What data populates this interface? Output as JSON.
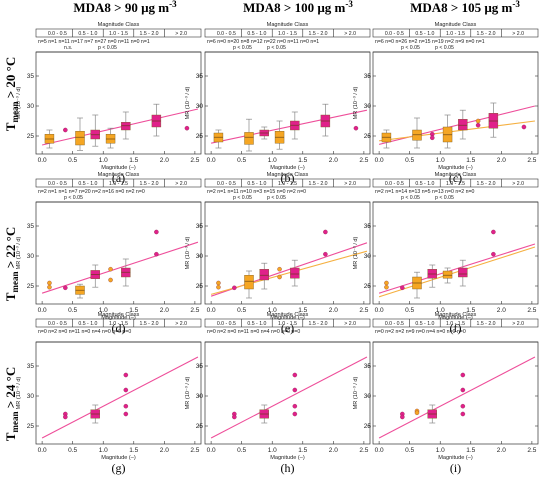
{
  "colors": {
    "magenta": "#E0218A",
    "orange": "#F5A623",
    "line_magenta": "#EE4E9A",
    "line_orange": "#F5B041",
    "whisker": "#888888"
  },
  "figure": {
    "column_titles": [
      {
        "prefix": "MDA8 > 90 µg m",
        "sup": "-3"
      },
      {
        "prefix": "MDA8 > 100 µg m",
        "sup": "-3"
      },
      {
        "prefix": "MDA8 > 105 µg m",
        "sup": "-3"
      }
    ],
    "row_labels": [
      {
        "t": "T",
        "sub": "mean",
        "rest": " > 20 °C"
      },
      {
        "t": "T",
        "sub": "mean",
        "rest": " > 22 °C"
      },
      {
        "t": "T",
        "sub": "mean",
        "rest": " > 24 °C"
      }
    ],
    "top_axis_title": "Magnitude Class",
    "class_labels": [
      "0.0 - 0.5",
      "0.5 - 1.0",
      "1.0 - 1.5",
      "1.5 - 2.0",
      "> 2.0"
    ],
    "x_label": "Magnitude (–)",
    "y_label": "MR (10⁻³ / d)",
    "x_ticks": [
      "0.0",
      "0.5",
      "1.0",
      "1.5",
      "2.0",
      "2.5"
    ],
    "y_ticks": [
      "25",
      "30",
      "35"
    ]
  },
  "chart_data": [
    {
      "type": "box",
      "panel": "a",
      "xlim": [
        -0.1,
        2.6
      ],
      "ylim": [
        22,
        39
      ],
      "n_text": "n=5  n=1 n=11 n=17 n=7 n=27 n=0  n=11 n=0  n=1",
      "sig_text": [
        "n.s.",
        "p < 0.05"
      ],
      "boxes": [
        {
          "x": 0.12,
          "q1": 23.8,
          "med": 24.5,
          "q3": 25.3,
          "lo": 23.0,
          "hi": 26.0,
          "color": "orange"
        },
        {
          "x": 0.62,
          "q1": 23.5,
          "med": 24.8,
          "q3": 25.8,
          "lo": 22.6,
          "hi": 28.0,
          "color": "orange"
        },
        {
          "x": 0.87,
          "q1": 24.5,
          "med": 25.2,
          "q3": 26.0,
          "lo": 23.3,
          "hi": 28.5,
          "color": "magenta"
        },
        {
          "x": 1.12,
          "q1": 23.8,
          "med": 24.5,
          "q3": 25.3,
          "lo": 23.0,
          "hi": 26.3,
          "color": "orange"
        },
        {
          "x": 1.37,
          "q1": 26.0,
          "med": 26.7,
          "q3": 27.3,
          "lo": 24.5,
          "hi": 29.0,
          "color": "magenta"
        },
        {
          "x": 1.87,
          "q1": 26.5,
          "med": 27.5,
          "q3": 28.5,
          "lo": 25.0,
          "hi": 30.3,
          "color": "magenta"
        }
      ],
      "points": [
        {
          "x": 0.38,
          "y": 26.0,
          "color": "magenta"
        },
        {
          "x": 2.37,
          "y": 26.3,
          "color": "magenta"
        }
      ],
      "lines": [
        {
          "color": "magenta",
          "x": [
            0.0,
            2.55
          ],
          "y": [
            23.5,
            29.5
          ]
        }
      ]
    },
    {
      "type": "box",
      "panel": "b",
      "xlim": [
        -0.1,
        2.6
      ],
      "ylim": [
        22,
        39
      ],
      "n_text": "n=6  n=0 n=20 n=8 n=12 n=22 n=0  n=11 n=0  n=1",
      "sig_text": [
        "p < 0.05",
        "p < 0.05"
      ],
      "boxes": [
        {
          "x": 0.12,
          "q1": 24.0,
          "med": 24.8,
          "q3": 25.5,
          "lo": 23.0,
          "hi": 26.0,
          "color": "orange"
        },
        {
          "x": 0.62,
          "q1": 23.6,
          "med": 24.8,
          "q3": 25.6,
          "lo": 22.5,
          "hi": 27.8,
          "color": "orange"
        },
        {
          "x": 0.87,
          "q1": 25.0,
          "med": 25.5,
          "q3": 26.0,
          "lo": 24.5,
          "hi": 26.5,
          "color": "magenta"
        },
        {
          "x": 1.12,
          "q1": 23.8,
          "med": 24.8,
          "q3": 25.8,
          "lo": 22.8,
          "hi": 27.5,
          "color": "orange"
        },
        {
          "x": 1.37,
          "q1": 26.0,
          "med": 26.8,
          "q3": 27.5,
          "lo": 24.5,
          "hi": 29.0,
          "color": "magenta"
        },
        {
          "x": 1.87,
          "q1": 26.5,
          "med": 27.5,
          "q3": 28.5,
          "lo": 25.0,
          "hi": 30.3,
          "color": "magenta"
        }
      ],
      "points": [
        {
          "x": 2.37,
          "y": 26.3,
          "color": "magenta"
        }
      ],
      "lines": [
        {
          "color": "magenta",
          "x": [
            0.0,
            2.55
          ],
          "y": [
            23.8,
            29.3
          ]
        }
      ]
    },
    {
      "type": "box",
      "panel": "c",
      "xlim": [
        -0.1,
        2.6
      ],
      "ylim": [
        22,
        39
      ],
      "n_text": "n=6  n=0 n=26 n=2 n=15 n=19 n=2  n=9 n=0  n=1",
      "sig_text": [
        "p < 0.05",
        "p < 0.05"
      ],
      "boxes": [
        {
          "x": 0.12,
          "q1": 24.0,
          "med": 24.8,
          "q3": 25.5,
          "lo": 23.0,
          "hi": 26.0,
          "color": "orange"
        },
        {
          "x": 0.62,
          "q1": 24.3,
          "med": 25.2,
          "q3": 26.0,
          "lo": 23.0,
          "hi": 28.0,
          "color": "orange"
        },
        {
          "x": 1.12,
          "q1": 24.0,
          "med": 25.2,
          "q3": 26.5,
          "lo": 23.0,
          "hi": 28.5,
          "color": "orange"
        },
        {
          "x": 1.37,
          "q1": 26.0,
          "med": 26.8,
          "q3": 27.8,
          "lo": 24.5,
          "hi": 29.3,
          "color": "magenta"
        },
        {
          "x": 1.87,
          "q1": 26.3,
          "med": 27.5,
          "q3": 28.8,
          "lo": 24.8,
          "hi": 30.5,
          "color": "magenta"
        }
      ],
      "points": [
        {
          "x": 0.87,
          "y": 25.3,
          "color": "magenta"
        },
        {
          "x": 0.87,
          "y": 24.7,
          "color": "magenta"
        },
        {
          "x": 1.62,
          "y": 26.8,
          "color": "magenta"
        },
        {
          "x": 1.62,
          "y": 27.5,
          "color": "orange"
        },
        {
          "x": 2.37,
          "y": 26.5,
          "color": "magenta"
        }
      ],
      "lines": [
        {
          "color": "magenta",
          "x": [
            0.0,
            2.55
          ],
          "y": [
            23.6,
            30.0
          ]
        },
        {
          "color": "orange",
          "x": [
            0.0,
            2.55
          ],
          "y": [
            24.2,
            27.5
          ]
        }
      ]
    },
    {
      "type": "box",
      "panel": "d",
      "xlim": [
        -0.1,
        2.6
      ],
      "ylim": [
        22,
        39
      ],
      "n_text": "n=2  n=1 n=1 n=7 n=20 n=2 n=16 n=0  n=2  n=0",
      "sig_text": [
        "p < 0.05"
      ],
      "boxes": [
        {
          "x": 0.62,
          "q1": 23.6,
          "med": 24.3,
          "q3": 25.0,
          "lo": 23.0,
          "hi": 25.3,
          "color": "orange"
        },
        {
          "x": 0.87,
          "q1": 26.2,
          "med": 26.9,
          "q3": 27.6,
          "lo": 24.8,
          "hi": 28.5,
          "color": "magenta"
        },
        {
          "x": 1.37,
          "q1": 26.5,
          "med": 27.3,
          "q3": 28.0,
          "lo": 25.0,
          "hi": 29.5,
          "color": "magenta"
        }
      ],
      "points": [
        {
          "x": 0.12,
          "y": 25.5,
          "color": "orange"
        },
        {
          "x": 0.12,
          "y": 24.8,
          "color": "orange"
        },
        {
          "x": 0.38,
          "y": 24.7,
          "color": "magenta"
        },
        {
          "x": 1.12,
          "y": 27.8,
          "color": "orange"
        },
        {
          "x": 1.12,
          "y": 26.0,
          "color": "orange"
        },
        {
          "x": 1.87,
          "y": 34.0,
          "color": "magenta"
        },
        {
          "x": 1.87,
          "y": 30.3,
          "color": "magenta"
        }
      ],
      "lines": [
        {
          "color": "magenta",
          "x": [
            0.0,
            2.55
          ],
          "y": [
            23.8,
            32.3
          ]
        }
      ]
    },
    {
      "type": "box",
      "panel": "e",
      "xlim": [
        -0.1,
        2.6
      ],
      "ylim": [
        22,
        39
      ],
      "n_text": "n=2  n=1 n=11 n=10 n=3 n=15 n=0  n=2  n=0",
      "sig_text": [
        "p < 0.05",
        "p < 0.05"
      ],
      "boxes": [
        {
          "x": 0.62,
          "q1": 24.5,
          "med": 25.8,
          "q3": 26.8,
          "lo": 23.0,
          "hi": 27.5,
          "color": "orange"
        },
        {
          "x": 0.87,
          "q1": 26.0,
          "med": 26.8,
          "q3": 27.8,
          "lo": 24.5,
          "hi": 28.8,
          "color": "magenta"
        },
        {
          "x": 1.37,
          "q1": 26.3,
          "med": 27.0,
          "q3": 28.0,
          "lo": 25.0,
          "hi": 29.3,
          "color": "magenta"
        }
      ],
      "points": [
        {
          "x": 0.12,
          "y": 25.5,
          "color": "orange"
        },
        {
          "x": 0.12,
          "y": 24.8,
          "color": "orange"
        },
        {
          "x": 0.38,
          "y": 24.7,
          "color": "magenta"
        },
        {
          "x": 1.12,
          "y": 27.8,
          "color": "orange"
        },
        {
          "x": 1.12,
          "y": 26.5,
          "color": "orange"
        },
        {
          "x": 1.87,
          "y": 34.0,
          "color": "magenta"
        },
        {
          "x": 1.87,
          "y": 30.3,
          "color": "magenta"
        }
      ],
      "lines": [
        {
          "color": "magenta",
          "x": [
            0.0,
            2.55
          ],
          "y": [
            23.3,
            32.2
          ]
        },
        {
          "color": "orange",
          "x": [
            0.0,
            2.55
          ],
          "y": [
            23.6,
            30.8
          ]
        }
      ]
    },
    {
      "type": "box",
      "panel": "f",
      "xlim": [
        -0.1,
        2.6
      ],
      "ylim": [
        22,
        39
      ],
      "n_text": "n=2  n=1 n=14 n=13 n=5 n=13 n=0  n=2  n=0",
      "sig_text": [
        "p < 0.05",
        "p < 0.05"
      ],
      "boxes": [
        {
          "x": 0.62,
          "q1": 24.5,
          "med": 25.5,
          "q3": 26.5,
          "lo": 23.0,
          "hi": 27.3,
          "color": "orange"
        },
        {
          "x": 0.87,
          "q1": 26.3,
          "med": 27.0,
          "q3": 27.8,
          "lo": 24.8,
          "hi": 28.5,
          "color": "magenta"
        },
        {
          "x": 1.12,
          "q1": 26.3,
          "med": 26.8,
          "q3": 27.5,
          "lo": 25.5,
          "hi": 28.0,
          "color": "orange"
        },
        {
          "x": 1.37,
          "q1": 26.5,
          "med": 27.0,
          "q3": 28.0,
          "lo": 25.0,
          "hi": 29.3,
          "color": "magenta"
        }
      ],
      "points": [
        {
          "x": 0.12,
          "y": 25.5,
          "color": "orange"
        },
        {
          "x": 0.12,
          "y": 24.8,
          "color": "orange"
        },
        {
          "x": 0.38,
          "y": 24.7,
          "color": "magenta"
        },
        {
          "x": 1.87,
          "y": 34.0,
          "color": "magenta"
        },
        {
          "x": 1.87,
          "y": 30.3,
          "color": "magenta"
        }
      ],
      "lines": [
        {
          "color": "magenta",
          "x": [
            0.0,
            2.55
          ],
          "y": [
            23.8,
            32.0
          ]
        },
        {
          "color": "orange",
          "x": [
            0.0,
            2.55
          ],
          "y": [
            23.2,
            31.5
          ]
        }
      ]
    },
    {
      "type": "box",
      "panel": "g",
      "xlim": [
        -0.1,
        2.6
      ],
      "ylim": [
        22,
        39
      ],
      "n_text": "n=0  n=2 n=0 n=11 n=0  n=4 n=0  n=0  n=0",
      "sig_text": [],
      "boxes": [
        {
          "x": 0.87,
          "q1": 26.3,
          "med": 27.0,
          "q3": 27.7,
          "lo": 25.5,
          "hi": 28.5,
          "color": "magenta"
        }
      ],
      "points": [
        {
          "x": 0.38,
          "y": 27.0,
          "color": "magenta"
        },
        {
          "x": 0.38,
          "y": 26.5,
          "color": "magenta"
        },
        {
          "x": 1.37,
          "y": 33.5,
          "color": "magenta"
        },
        {
          "x": 1.37,
          "y": 31.0,
          "color": "magenta"
        },
        {
          "x": 1.37,
          "y": 28.3,
          "color": "magenta"
        },
        {
          "x": 1.37,
          "y": 27.0,
          "color": "magenta"
        }
      ],
      "lines": [
        {
          "color": "magenta",
          "x": [
            0.0,
            2.55
          ],
          "y": [
            23.0,
            36.5
          ]
        }
      ]
    },
    {
      "type": "box",
      "panel": "h",
      "xlim": [
        -0.1,
        2.6
      ],
      "ylim": [
        22,
        39
      ],
      "n_text": "n=0  n=2 n=0 n=11 n=0  n=4 n=0  n=0  n=0",
      "sig_text": [],
      "boxes": [
        {
          "x": 0.87,
          "q1": 26.3,
          "med": 27.0,
          "q3": 27.7,
          "lo": 25.5,
          "hi": 28.5,
          "color": "magenta"
        }
      ],
      "points": [
        {
          "x": 0.38,
          "y": 27.0,
          "color": "magenta"
        },
        {
          "x": 0.38,
          "y": 26.5,
          "color": "magenta"
        },
        {
          "x": 1.37,
          "y": 33.5,
          "color": "magenta"
        },
        {
          "x": 1.37,
          "y": 31.0,
          "color": "magenta"
        },
        {
          "x": 1.37,
          "y": 28.3,
          "color": "magenta"
        },
        {
          "x": 1.37,
          "y": 27.0,
          "color": "magenta"
        }
      ],
      "lines": [
        {
          "color": "magenta",
          "x": [
            0.0,
            2.55
          ],
          "y": [
            23.0,
            36.5
          ]
        }
      ]
    },
    {
      "type": "box",
      "panel": "i",
      "xlim": [
        -0.1,
        2.6
      ],
      "ylim": [
        22,
        39
      ],
      "n_text": "n=0  n=2 n=2 n=9 n=0  n=4 n=0  n=0  n=0",
      "sig_text": [],
      "boxes": [
        {
          "x": 0.87,
          "q1": 26.3,
          "med": 27.0,
          "q3": 27.7,
          "lo": 25.5,
          "hi": 28.5,
          "color": "magenta"
        }
      ],
      "points": [
        {
          "x": 0.38,
          "y": 27.0,
          "color": "magenta"
        },
        {
          "x": 0.38,
          "y": 26.5,
          "color": "magenta"
        },
        {
          "x": 0.62,
          "y": 27.5,
          "color": "orange"
        },
        {
          "x": 0.62,
          "y": 27.2,
          "color": "orange"
        },
        {
          "x": 1.37,
          "y": 33.5,
          "color": "magenta"
        },
        {
          "x": 1.37,
          "y": 31.0,
          "color": "magenta"
        },
        {
          "x": 1.37,
          "y": 28.3,
          "color": "magenta"
        },
        {
          "x": 1.37,
          "y": 27.0,
          "color": "magenta"
        }
      ],
      "lines": [
        {
          "color": "magenta",
          "x": [
            0.0,
            2.55
          ],
          "y": [
            23.0,
            36.5
          ]
        }
      ]
    }
  ]
}
